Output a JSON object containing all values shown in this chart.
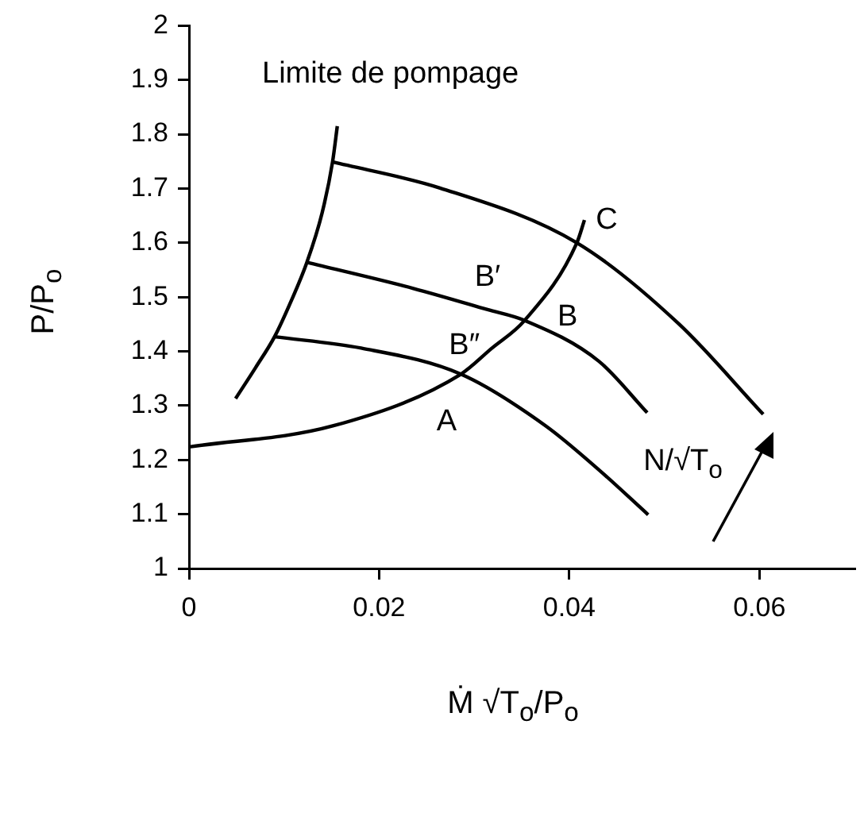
{
  "chart_data": {
    "type": "line",
    "xlabel": "Ṁ √T$_{o}$/P$_{o}$",
    "ylabel": "P/P$_{o}$",
    "xlim": [
      0,
      0.07
    ],
    "xticks": [
      0,
      0.02,
      0.04,
      0.06
    ],
    "ylim": [
      1,
      2
    ],
    "yticks": [
      1,
      1.1,
      1.2,
      1.3,
      1.4,
      1.5,
      1.6,
      1.7,
      1.8,
      1.9,
      2
    ],
    "grid": false,
    "legend": false,
    "marker": "none",
    "line_style": "solid",
    "series": [
      {
        "color": "#000000",
        "x": [
          0.0049,
          0.007,
          0.009,
          0.0108,
          0.0124,
          0.014,
          0.0151,
          0.0156
        ],
        "values": [
          1.313,
          1.37,
          1.427,
          1.495,
          1.564,
          1.655,
          1.749,
          1.815
        ]
      },
      {
        "color": "#000000",
        "x": [
          0.009,
          0.0181,
          0.0286,
          0.0375,
          0.0431,
          0.0483
        ],
        "values": [
          1.427,
          1.406,
          1.358,
          1.263,
          1.182,
          1.099
        ]
      },
      {
        "color": "#000000",
        "x": [
          0.0124,
          0.0236,
          0.0314,
          0.0353,
          0.0431,
          0.0482
        ],
        "values": [
          1.564,
          1.516,
          1.477,
          1.457,
          1.382,
          1.287
        ]
      },
      {
        "color": "#000000",
        "x": [
          0.0151,
          0.0264,
          0.0408,
          0.0515,
          0.0604
        ],
        "values": [
          1.749,
          1.701,
          1.6,
          1.451,
          1.284
        ]
      },
      {
        "color": "#000000",
        "x": [
          0,
          0.0152,
          0.0286,
          0.0318,
          0.0353,
          0.0408,
          0.0416
        ],
        "values": [
          1.224,
          1.263,
          1.358,
          1.405,
          1.457,
          1.6,
          1.642
        ]
      }
    ],
    "annotations": [
      "Limite de pompage",
      "N/√T$_{o}$",
      {
        "text": "A",
        "x": 0.0286,
        "y": 1.358
      },
      {
        "text": "B″",
        "x": 0.0318,
        "y": 1.405
      },
      {
        "text": "B′",
        "x": 0.0314,
        "y": 1.477
      },
      {
        "text": "B",
        "x": 0.0353,
        "y": 1.457
      },
      {
        "text": "C",
        "x": 0.0416,
        "y": 1.642
      }
    ]
  }
}
